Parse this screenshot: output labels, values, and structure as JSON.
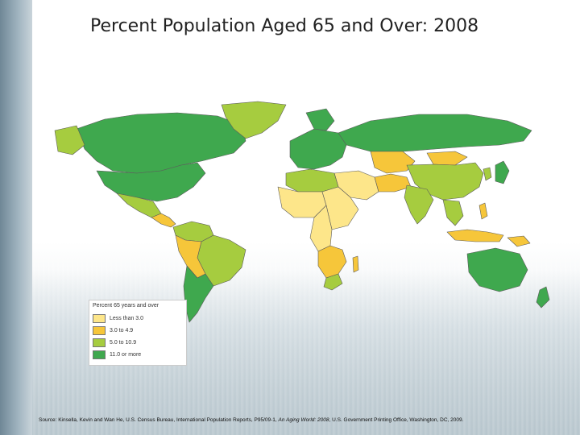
{
  "title": "Percent Population Aged 65 and Over: 2008",
  "legend": {
    "title": "Percent 65 years and over",
    "items": [
      {
        "label": "Less than 3.0",
        "color": "#fde68a"
      },
      {
        "label": "3.0 to 4.9",
        "color": "#f6c63a"
      },
      {
        "label": "5.0 to 10.9",
        "color": "#a6cc3f"
      },
      {
        "label": "11.0 or more",
        "color": "#3fa84e"
      }
    ]
  },
  "source": {
    "prefix": "Source: Kinsella, Kevin and Wan He, U.S. Census Bureau, International Population Reports, P95/09-1, ",
    "italic": "An Aging World: 2008",
    "suffix": ", U.S. Government Printing Office, Washington, DC, 2009."
  },
  "colors": {
    "low": "#fde68a",
    "mid_low": "#f6c63a",
    "mid_high": "#a6cc3f",
    "high": "#3fa84e",
    "border": "#6b6b6b"
  }
}
